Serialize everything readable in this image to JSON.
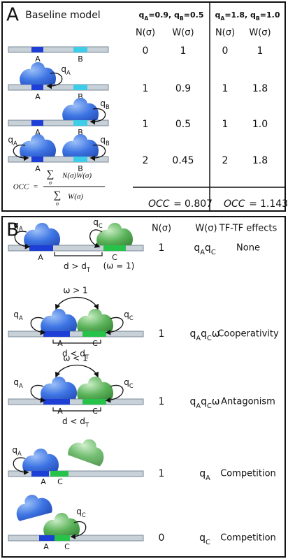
{
  "panel_a": {
    "label": "A",
    "title": "Baseline model",
    "conditions": [
      [
        {
          "t": "q",
          "s": "A"
        },
        {
          "t": "=0.9, q",
          "s": "B"
        },
        {
          "t": "=0.5"
        }
      ],
      [
        {
          "t": "q",
          "s": "A"
        },
        {
          "t": "=1.8, q",
          "s": "B"
        },
        {
          "t": "=1.0"
        }
      ]
    ],
    "column_headers": [
      "N(σ)",
      "W(σ)",
      "N(σ)",
      "W(σ)"
    ],
    "rows": [
      [
        "0",
        "1",
        "0",
        "1"
      ],
      [
        "1",
        "0.9",
        "1",
        "1.8"
      ],
      [
        "1",
        "0.5",
        "1",
        "1.0"
      ],
      [
        "2",
        "0.45",
        "2",
        "1.8"
      ]
    ],
    "diagram_labels": {
      "site_a": "A",
      "site_b": "B",
      "q_a": [
        {
          "t": "q",
          "s": "A"
        }
      ],
      "q_b": [
        {
          "t": "q",
          "s": "B"
        }
      ]
    },
    "formula": {
      "lhs": "OCC",
      "eq": "=",
      "sum": "∑",
      "index": "σ",
      "numerator": "N(σ)W(σ)",
      "denominator": "W(σ)"
    },
    "results": [
      {
        "label": "OCC",
        "eq": "=",
        "value": "0.807"
      },
      {
        "label": "OCC",
        "eq": "=",
        "value": "1.143"
      }
    ]
  },
  "panel_b": {
    "label": "B",
    "column_headers": [
      "N(σ)",
      "W(σ)",
      "TF-TF effects"
    ],
    "rows": [
      {
        "n": "1",
        "w": [
          {
            "t": "q",
            "s": "A"
          },
          {
            "t": "q",
            "s": "C"
          }
        ],
        "effect": "None"
      },
      {
        "n": "1",
        "w": [
          {
            "t": "q",
            "s": "A"
          },
          {
            "t": "q",
            "s": "C"
          },
          {
            "t": "ω"
          }
        ],
        "effect": "Cooperativity"
      },
      {
        "n": "1",
        "w": [
          {
            "t": "q",
            "s": "A"
          },
          {
            "t": "q",
            "s": "C"
          },
          {
            "t": "ω"
          }
        ],
        "effect": "Antagonism"
      },
      {
        "n": "1",
        "w": [
          {
            "t": "q",
            "s": "A"
          }
        ],
        "effect": "Competition"
      },
      {
        "n": "0",
        "w": [
          {
            "t": "q",
            "s": "C"
          }
        ],
        "effect": "Competition"
      }
    ],
    "diagram_labels": {
      "site_a": "A",
      "site_c": "C",
      "q_a": [
        {
          "t": "q",
          "s": "A"
        }
      ],
      "q_c": [
        {
          "t": "q",
          "s": "C"
        }
      ],
      "d_gt": [
        {
          "t": "d > d",
          "s": "T"
        }
      ],
      "d_lt": [
        {
          "t": "d < d",
          "s": "T"
        }
      ],
      "omega_eq": "(ω = 1)",
      "omega_gt": "ω > 1",
      "omega_lt": "ω < 1"
    }
  }
}
